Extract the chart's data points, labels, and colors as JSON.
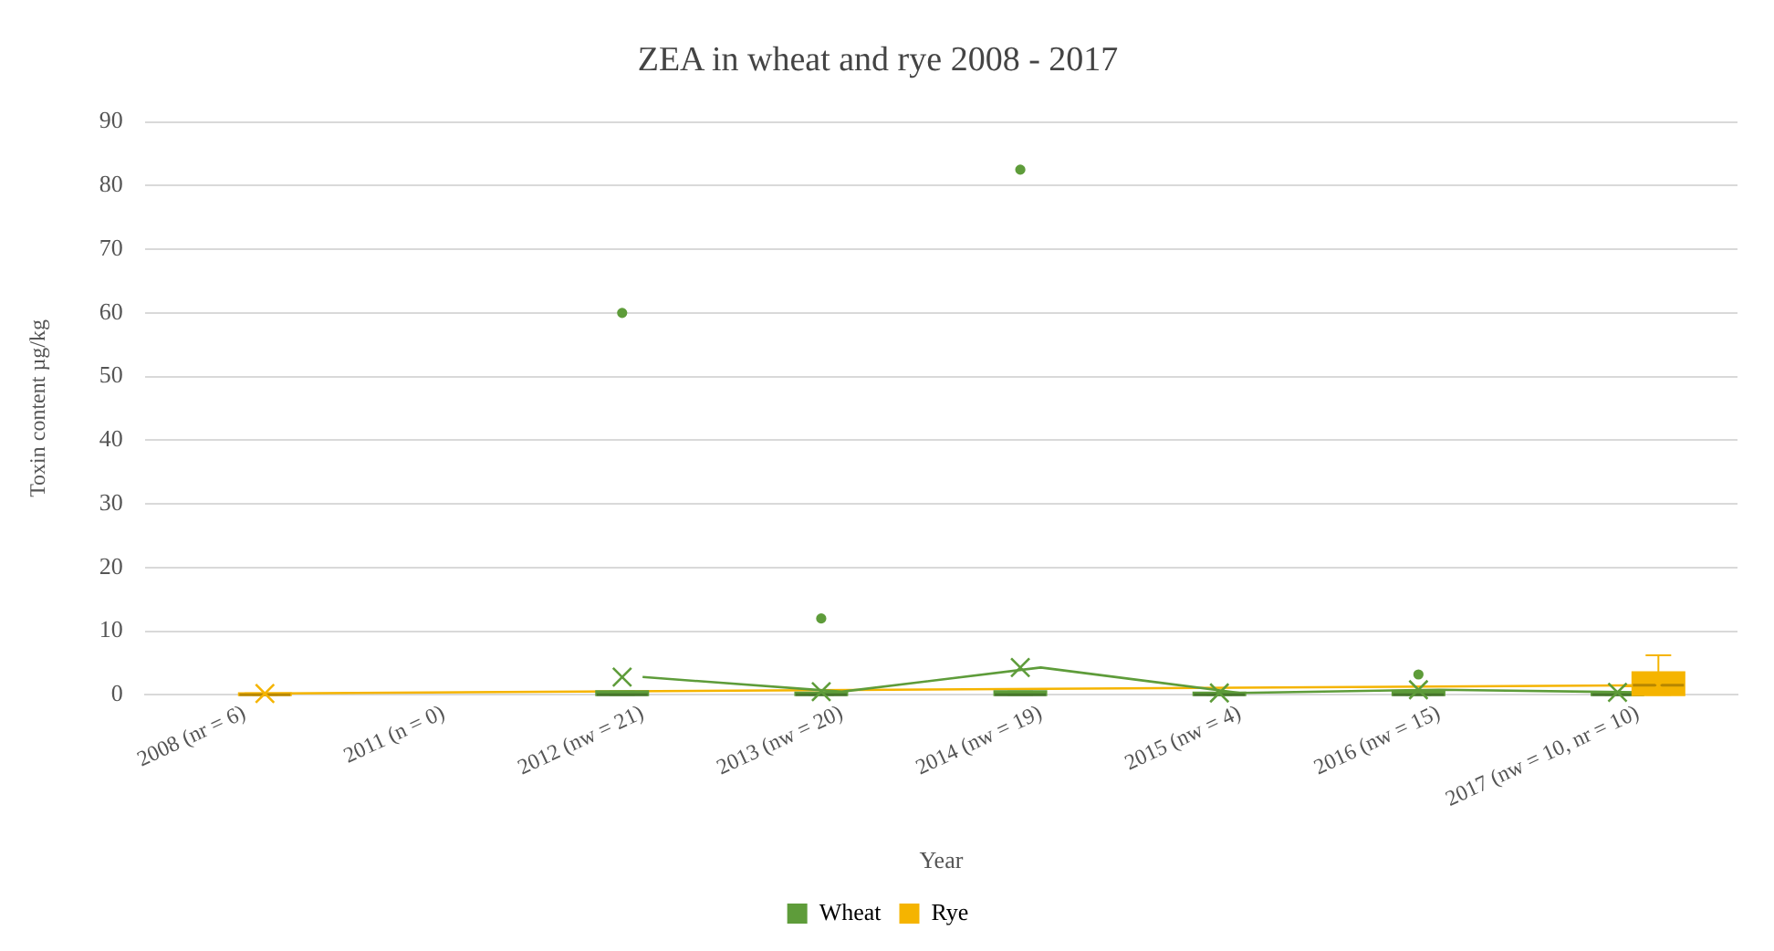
{
  "chart_data": {
    "type": "box",
    "title": "ZEA in wheat and rye 2008 - 2017",
    "xlabel": "Year",
    "ylabel": "Toxin content µg/kg",
    "categories": [
      "2008 (nr = 6)",
      "2011 (n = 0)",
      "2012 (nw = 21)",
      "2013 (nw = 20)",
      "2014 (nw = 19)",
      "2015 (nw = 4)",
      "2016 (nw = 15)",
      "2017 (nw = 10, nr = 10)"
    ],
    "ylim": [
      0,
      90
    ],
    "yticks": [
      0,
      10,
      20,
      30,
      40,
      50,
      60,
      70,
      80,
      90
    ],
    "grid": "y",
    "legend": "bottom",
    "marker": "cross",
    "series": [
      {
        "name": "Wheat",
        "color": "#5e9c3a",
        "boxes": [
          null,
          null,
          {
            "low": 0,
            "q1": 0,
            "median": 0,
            "q3": 0.5,
            "high": 0.5,
            "mean": 2.8,
            "outliers": [
              60
            ]
          },
          {
            "low": 0,
            "q1": 0,
            "median": 0,
            "q3": 0.3,
            "high": 0.3,
            "mean": 0.5,
            "outliers": [
              12
            ]
          },
          {
            "low": 0,
            "q1": 0,
            "median": 0,
            "q3": 0.5,
            "high": 0.5,
            "mean": 4.3,
            "outliers": [
              82.5
            ]
          },
          {
            "low": 0,
            "q1": 0,
            "median": 0,
            "q3": 0.3,
            "high": 0.3,
            "mean": 0.3
          },
          {
            "low": 0,
            "q1": 0,
            "median": 0,
            "q3": 0.5,
            "high": 0.5,
            "mean": 0.8,
            "outliers": [
              3.2
            ]
          },
          {
            "low": 0,
            "q1": 0,
            "median": 0,
            "q3": 0.3,
            "high": 0.3,
            "mean": 0.4
          }
        ]
      },
      {
        "name": "Rye",
        "color": "#f5b400",
        "boxes": [
          {
            "low": 0,
            "q1": 0,
            "median": 0,
            "q3": 0.2,
            "high": 0.2,
            "mean": 0.2
          },
          null,
          null,
          null,
          null,
          null,
          null,
          {
            "low": 0,
            "q1": 0,
            "median": 1.5,
            "q3": 3.5,
            "high": 6.2,
            "mean": 1.5
          }
        ]
      },
      {
        "type": "line",
        "marker": "none",
        "color": "#5e9c3a",
        "values": [
          null,
          null,
          2.8,
          0.5,
          4.3,
          0.3,
          0.8,
          0.4
        ]
      },
      {
        "type": "line",
        "marker": "none",
        "color": "#f5b400",
        "values": [
          0.2,
          null,
          null,
          null,
          null,
          null,
          null,
          1.5
        ]
      }
    ]
  }
}
